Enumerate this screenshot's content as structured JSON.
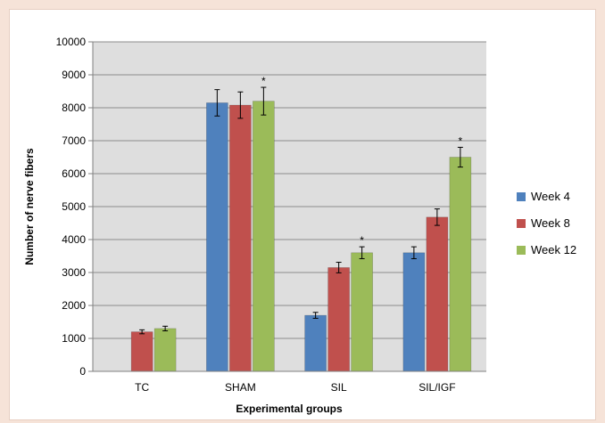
{
  "chart_data": {
    "type": "bar",
    "title": "",
    "xlabel": "Experimental groups",
    "ylabel": "Number of nerve fibers",
    "ylim": [
      0,
      10000
    ],
    "yticks": [
      0,
      1000,
      2000,
      3000,
      4000,
      5000,
      6000,
      7000,
      8000,
      9000,
      10000
    ],
    "grid": true,
    "legend_position": "right",
    "categories": [
      "TC",
      "SHAM",
      "SIL",
      "SIL/IGF"
    ],
    "series": [
      {
        "name": "Week 4",
        "color": "#4f81bd",
        "values": [
          null,
          8150,
          1700,
          3600
        ],
        "errors": [
          null,
          400,
          90,
          180
        ],
        "significant": [
          false,
          false,
          false,
          false
        ]
      },
      {
        "name": "Week 8",
        "color": "#c0504d",
        "values": [
          1200,
          8080,
          3150,
          4680
        ],
        "errors": [
          60,
          400,
          160,
          250
        ],
        "significant": [
          false,
          false,
          false,
          false
        ]
      },
      {
        "name": "Week 12",
        "color": "#9bbb59",
        "values": [
          1300,
          8200,
          3600,
          6500
        ],
        "errors": [
          70,
          420,
          180,
          300
        ],
        "significant": [
          false,
          true,
          true,
          true
        ]
      }
    ],
    "significance_marker": "*"
  }
}
